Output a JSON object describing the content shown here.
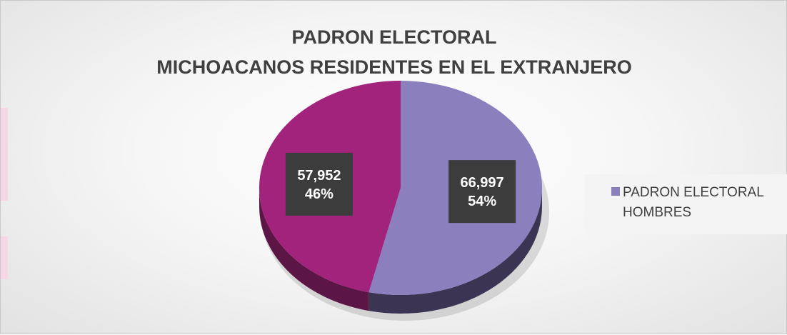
{
  "chart_data": {
    "type": "pie",
    "title_lines": [
      "PADRON ELECTORAL",
      "MICHOACANOS RESIDENTES EN EL EXTRANJERO"
    ],
    "slices": [
      {
        "value": 66997,
        "value_label": "66,997",
        "percent_label": "54%",
        "color": "#8b7fbe",
        "side_color": "#3b3553"
      },
      {
        "value": 57952,
        "value_label": "57,952",
        "percent_label": "46%",
        "color": "#a2237b",
        "side_color": "#5c1645"
      }
    ],
    "legend": {
      "position": "right",
      "entries": [
        {
          "label": "PADRON ELECTORAL HOMBRES",
          "color": "#8b7fbe"
        }
      ]
    },
    "start_angle_deg": 0,
    "direction": "clockwise",
    "style": "3d"
  }
}
